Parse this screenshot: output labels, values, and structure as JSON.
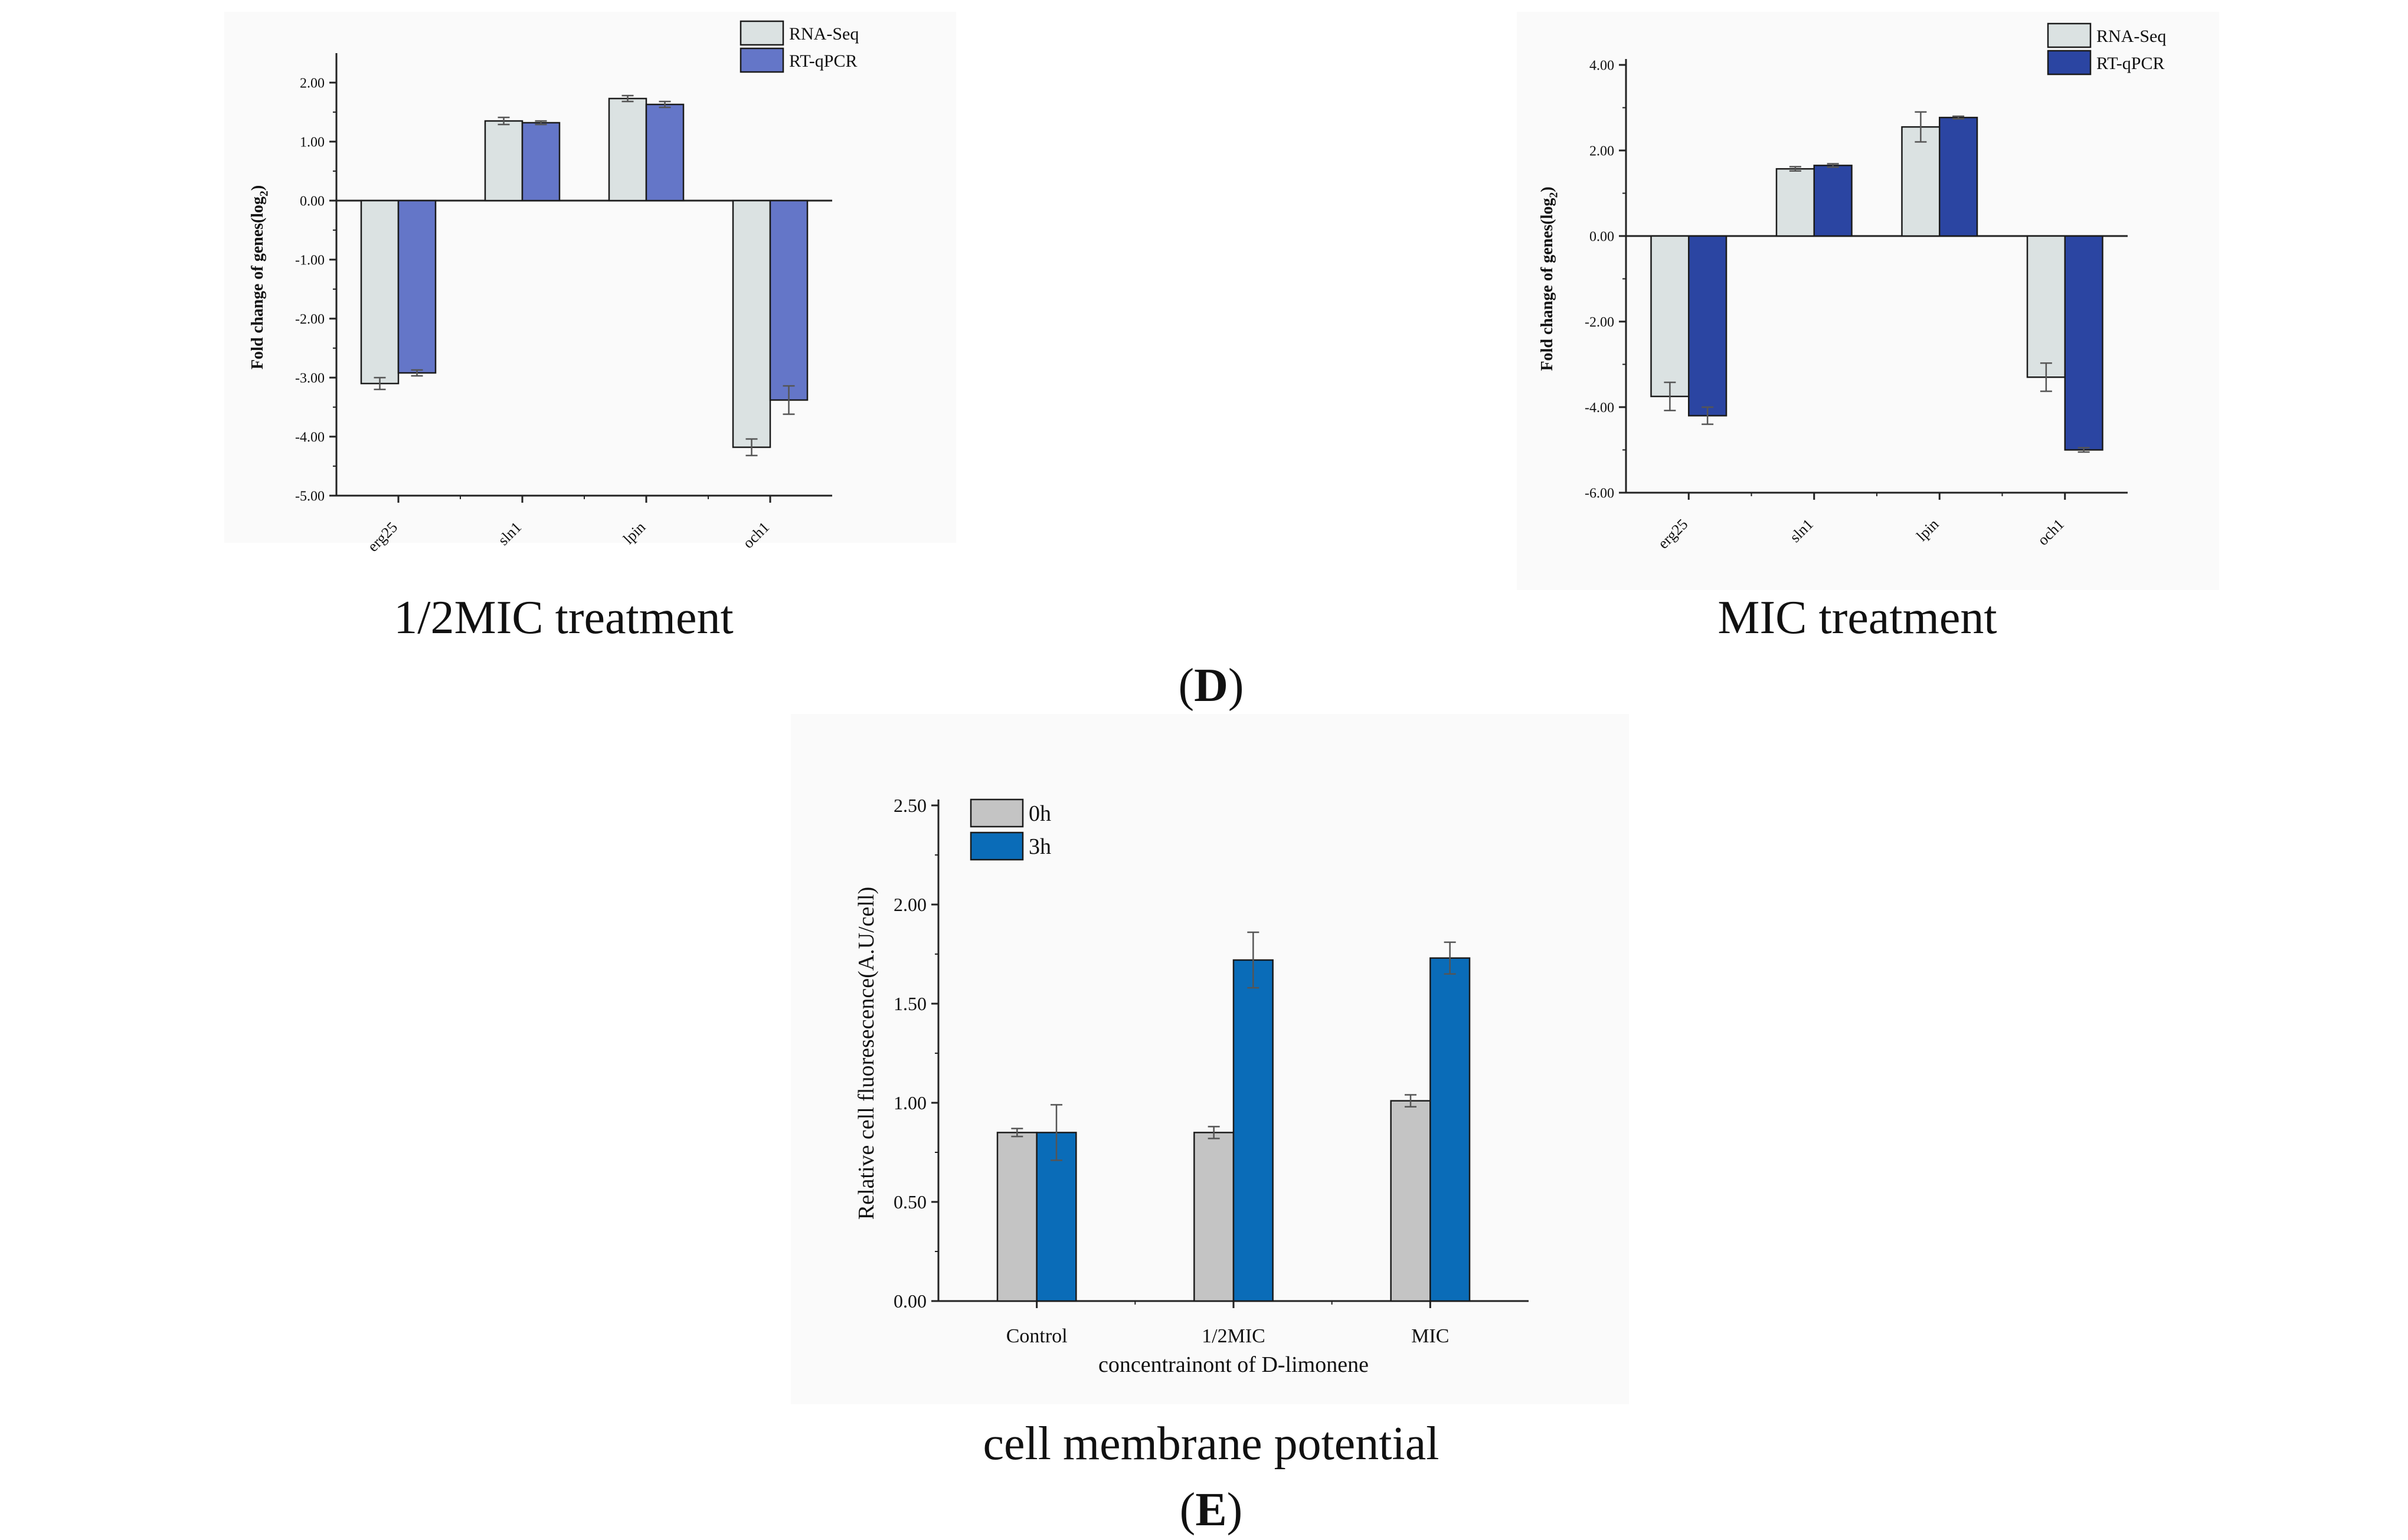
{
  "panels": [
    {
      "caption": "1/2MIC treatment",
      "chart_data": {
        "type": "bar",
        "title": "1/2MIC treatment",
        "xlabel": "",
        "ylabel": "Fold change of genes(log",
        "ylabel_sub": "2",
        "ylabel_end": ")",
        "categories": [
          "erg25",
          "sln1",
          "lpin",
          "och1"
        ],
        "ylim": [
          -5,
          2.4
        ],
        "yticks": [
          2,
          1,
          0,
          -1,
          -2,
          -3,
          -4,
          -5
        ],
        "ytick_labels": [
          "2.00",
          "1.00",
          "0.00",
          "-1.00",
          "-2.00",
          "-3.00",
          "-4.00",
          "-5.00"
        ],
        "legend_position": "top-right",
        "series": [
          {
            "name": "RNA-Seq",
            "color": "#dbe2e2",
            "values": [
              -3.1,
              1.35,
              1.73,
              -4.18
            ],
            "errors": [
              0.1,
              0.06,
              0.05,
              0.14
            ]
          },
          {
            "name": "RT-qPCR",
            "color": "#6476c8",
            "values": [
              -2.92,
              1.32,
              1.63,
              -3.38
            ],
            "errors": [
              0.05,
              0.03,
              0.05,
              0.24
            ]
          }
        ]
      }
    },
    {
      "caption": "MIC treatment",
      "chart_data": {
        "type": "bar",
        "title": "MIC treatment",
        "xlabel": "",
        "ylabel": "Fold change of genes(log",
        "ylabel_sub": "2",
        "ylabel_end": ")",
        "categories": [
          "erg25",
          "sln1",
          "lpin",
          "och1"
        ],
        "ylim": [
          -6,
          4
        ],
        "yticks": [
          4,
          2,
          0,
          -2,
          -4,
          -6
        ],
        "ytick_labels": [
          "4.00",
          "2.00",
          "0.00",
          "-2.00",
          "-4.00",
          "-6.00"
        ],
        "legend_position": "top-right",
        "series": [
          {
            "name": "RNA-Seq",
            "color": "#dbe2e2",
            "values": [
              -3.75,
              1.57,
              2.55,
              -3.3
            ],
            "errors": [
              0.33,
              0.05,
              0.35,
              0.33
            ]
          },
          {
            "name": "RT-qPCR",
            "color": "#2b45a2",
            "values": [
              -4.2,
              1.65,
              2.77,
              -5.0
            ],
            "errors": [
              0.2,
              0.04,
              0.03,
              0.05
            ]
          }
        ]
      }
    },
    {
      "caption": "cell membrane potential",
      "chart_data": {
        "type": "bar",
        "title": "cell membrane potential",
        "xlabel": "concentrainont of D-limonene",
        "ylabel": "Relative cell fluoresecence(A.U/cell)",
        "categories": [
          "Control",
          "1/2MIC",
          "MIC"
        ],
        "ylim": [
          0,
          2.5
        ],
        "yticks": [
          0,
          0.5,
          1,
          1.5,
          2,
          2.5
        ],
        "ytick_labels": [
          "0.00",
          "0.50",
          "1.00",
          "1.50",
          "2.00",
          "2.50"
        ],
        "legend_position": "top-left",
        "series": [
          {
            "name": "0h",
            "color": "#c4c4c4",
            "values": [
              0.85,
              0.85,
              1.01
            ],
            "errors": [
              0.02,
              0.03,
              0.03
            ]
          },
          {
            "name": "3h",
            "color": "#0a6cb8",
            "values": [
              0.85,
              1.72,
              1.73
            ],
            "errors": [
              0.14,
              0.14,
              0.08
            ]
          }
        ]
      }
    }
  ],
  "labels": {
    "d_letter": "D",
    "e_letter": "E",
    "open_paren": "(",
    "close_paren": ")"
  }
}
